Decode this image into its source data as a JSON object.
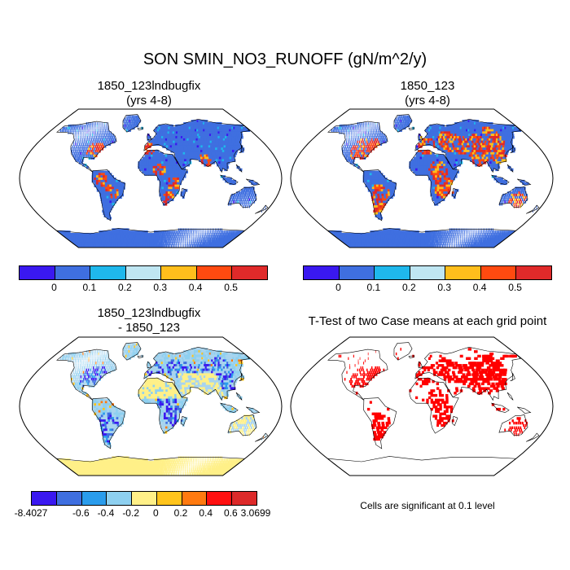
{
  "figure": {
    "title": "SON SMIN_NO3_RUNOFF (gN/m^2/y)"
  },
  "panels": [
    {
      "id": "case1",
      "title_line1": "1850_123lndbugfix",
      "title_line2": "(yrs 4-8)"
    },
    {
      "id": "case2",
      "title_line1": "1850_123",
      "title_line2": "(yrs 4-8)"
    },
    {
      "id": "diff",
      "title_line1": "1850_123lndbugfix",
      "title_line2": "- 1850_123"
    },
    {
      "id": "ttest",
      "title_line1": "T-Test of two Case means at each grid point",
      "title_line2": ""
    }
  ],
  "colorbar_top": {
    "colors": [
      "#3a18f0",
      "#3f6fe0",
      "#1fb8ec",
      "#bfe6f2",
      "#ffbe1c",
      "#ff4a10",
      "#e02a2a"
    ],
    "ticks": [
      "0",
      "0.1",
      "0.2",
      "0.3",
      "0.4",
      "0.5"
    ]
  },
  "colorbar_diff": {
    "colors": [
      "#3a18f0",
      "#3f6fe0",
      "#2a9cec",
      "#8ed0f0",
      "#fff088",
      "#ffc41c",
      "#ff7a10",
      "#ff1010",
      "#dd2a2a"
    ],
    "ticks": [
      "-8.4027",
      "-0.6",
      "-0.4",
      "-0.2",
      "0",
      "0.2",
      "0.4",
      "0.6",
      "3.0699"
    ]
  },
  "significance_note": "Cells are significant at 0.1 level",
  "colors": {
    "ocean": "#ffffff",
    "land_base": "#3f6fe0",
    "diff_base": "#a8d4ee",
    "signif": "#ff0000",
    "antarctica_diff": "#fff088"
  }
}
